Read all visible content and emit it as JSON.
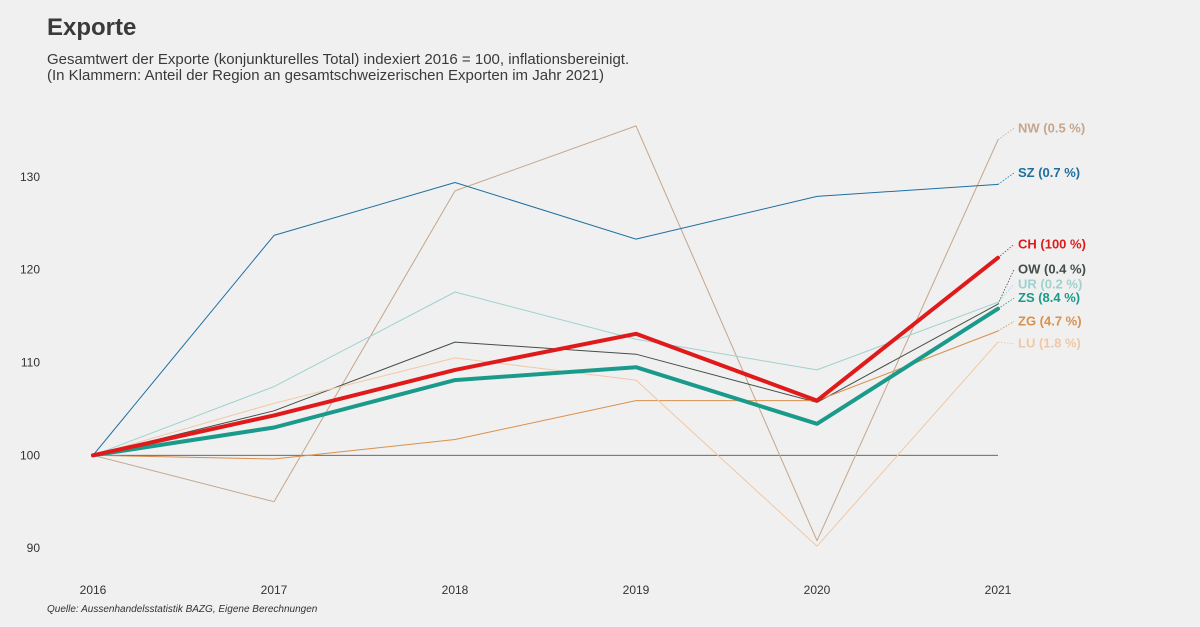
{
  "title": "Exporte",
  "subtitle_line1": "Gesamtwert der Exporte (konjunkturelles Total) indexiert 2016 = 100, inflationsbereinigt.",
  "subtitle_line2": "(In Klammern: Anteil der Region an gesamtschweizerischen Exporten im Jahr 2021)",
  "source": "Quelle: Aussenhandelsstatistik BAZG, Eigene Berechnungen",
  "chart_data": {
    "type": "line",
    "title": "Exporte",
    "xlabel": "",
    "ylabel": "",
    "x": [
      2016,
      2017,
      2018,
      2019,
      2020,
      2021
    ],
    "x_tick_labels": [
      "2016",
      "2017",
      "2018",
      "2019",
      "2020",
      "2021"
    ],
    "y_ticks": [
      90,
      100,
      110,
      120,
      130
    ],
    "ylim": [
      88.5,
      137
    ],
    "grid": false,
    "reference_line": 100,
    "series": [
      {
        "name": "NW (0.5 %)",
        "color": "#c4a68c",
        "weight": 1,
        "values": [
          100,
          95.0,
          128.5,
          135.5,
          90.8,
          134.0
        ]
      },
      {
        "name": "SZ (0.7 %)",
        "color": "#1e6fa0",
        "weight": 1,
        "values": [
          100,
          123.7,
          129.4,
          123.3,
          127.9,
          129.2
        ]
      },
      {
        "name": "OW (0.4 %)",
        "color": "#444e48",
        "weight": 1,
        "values": [
          100,
          104.8,
          112.2,
          110.9,
          105.7,
          116.3
        ]
      },
      {
        "name": "UR (0.2 %)",
        "color": "#9ed2cf",
        "weight": 1,
        "values": [
          100,
          107.4,
          117.6,
          112.5,
          109.2,
          116.5
        ]
      },
      {
        "name": "ZG (4.7 %)",
        "color": "#d9904b",
        "weight": 1,
        "values": [
          100,
          99.6,
          101.7,
          105.9,
          105.9,
          113.4
        ]
      },
      {
        "name": "LU (1.8 %)",
        "color": "#f0c8a5",
        "weight": 1,
        "values": [
          100,
          105.6,
          110.5,
          108.1,
          90.2,
          112.2
        ]
      },
      {
        "name": "ZS (8.4 %)",
        "color": "#1a9a8a",
        "weight": 4,
        "values": [
          100,
          103.0,
          108.1,
          109.5,
          103.4,
          115.8
        ]
      },
      {
        "name": "CH (100 %)",
        "color": "#e01a1a",
        "weight": 4,
        "values": [
          100,
          104.3,
          109.2,
          113.1,
          105.9,
          121.3
        ]
      }
    ],
    "labels": [
      {
        "text": "NW (0.5 %)",
        "color": "#c4a68c",
        "label_value": 134.8
      },
      {
        "text": "SZ (0.7 %)",
        "color": "#1e6fa0",
        "label_value": 130.0
      },
      {
        "text": "CH (100 %)",
        "color": "#e01a1a",
        "label_value": 122.3
      },
      {
        "text": "OW (0.4 %)",
        "color": "#444e48",
        "label_value": 119.6
      },
      {
        "text": "UR (0.2 %)",
        "color": "#9ed2cf",
        "label_value": 118.0
      },
      {
        "text": "ZS (8.4 %)",
        "color": "#1a9a8a",
        "label_value": 116.5
      },
      {
        "text": "ZG (4.7 %)",
        "color": "#d9904b",
        "label_value": 114.0
      },
      {
        "text": "LU (1.8 %)",
        "color": "#f0c8a5",
        "label_value": 111.6
      }
    ]
  }
}
